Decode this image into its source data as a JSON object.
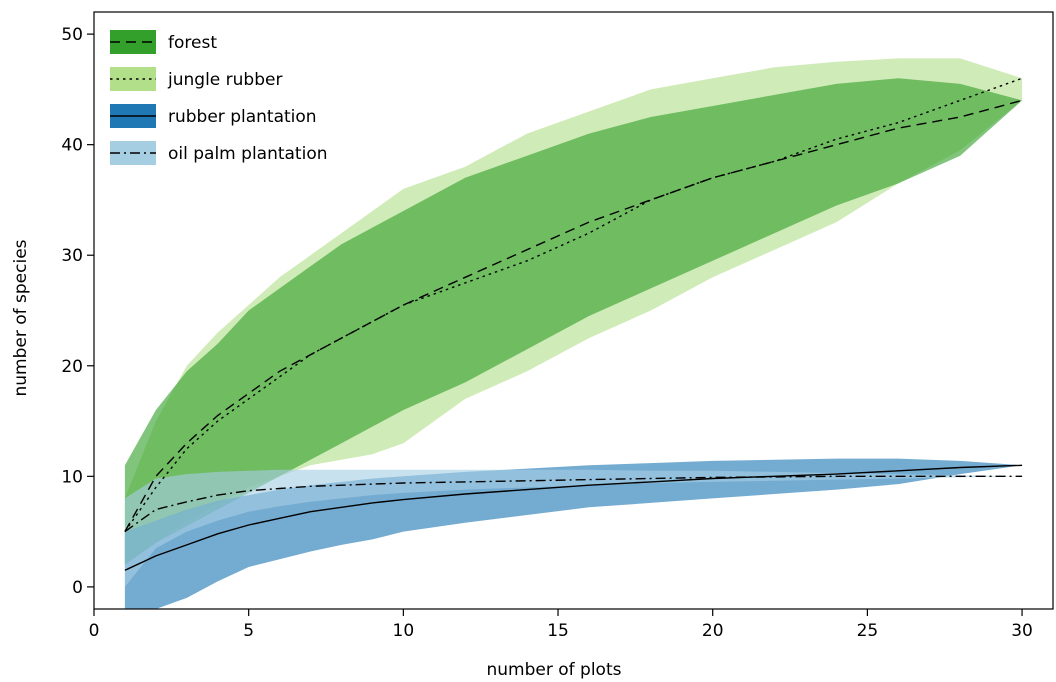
{
  "chart_data": {
    "type": "area",
    "xlabel": "number of plots",
    "ylabel": "number of species",
    "xlim": [
      0,
      31
    ],
    "ylim": [
      -2,
      52
    ],
    "xticks": [
      0,
      5,
      10,
      15,
      20,
      25,
      30
    ],
    "yticks": [
      0,
      10,
      20,
      30,
      40,
      50
    ],
    "grid": false,
    "legend_position": "top-left",
    "series": [
      {
        "name": "jungle rubber",
        "color": "#b2df8a",
        "line_style": "dotted",
        "x": [
          1,
          2,
          3,
          4,
          5,
          6,
          7,
          8,
          9,
          10,
          12,
          14,
          16,
          18,
          20,
          22,
          24,
          26,
          28,
          30
        ],
        "mean": [
          5,
          9,
          12.5,
          15,
          17,
          19,
          21,
          22.5,
          24,
          25.5,
          27.5,
          29.5,
          32,
          35,
          37,
          38.5,
          40.5,
          42,
          44,
          46
        ],
        "upper": [
          8,
          15,
          20,
          23,
          25.5,
          28,
          30,
          32,
          34,
          36,
          38,
          41,
          43,
          45,
          46,
          47,
          47.5,
          47.8,
          47.8,
          46
        ],
        "lower": [
          2,
          4,
          6,
          7.5,
          9,
          10,
          11,
          11.5,
          12,
          13,
          17,
          19.5,
          22.5,
          25,
          28,
          30.5,
          33,
          36.5,
          39.5,
          44
        ]
      },
      {
        "name": "forest",
        "color": "#33a02c",
        "line_style": "dashed",
        "x": [
          1,
          2,
          3,
          4,
          5,
          6,
          7,
          8,
          9,
          10,
          12,
          14,
          16,
          18,
          20,
          22,
          24,
          26,
          28,
          30
        ],
        "mean": [
          5,
          10,
          13,
          15.5,
          17.5,
          19.5,
          21,
          22.5,
          24,
          25.5,
          28,
          30.5,
          33,
          35,
          37,
          38.5,
          40,
          41.5,
          42.5,
          44
        ],
        "upper": [
          11,
          16,
          19.5,
          22,
          25,
          27,
          29,
          31,
          32.5,
          34,
          37,
          39,
          41,
          42.5,
          43.5,
          44.5,
          45.5,
          46,
          45.5,
          44
        ],
        "lower": [
          2,
          4,
          5.5,
          7,
          8.5,
          10,
          11.5,
          13,
          14.5,
          16,
          18.5,
          21.5,
          24.5,
          27,
          29.5,
          32,
          34.5,
          36.5,
          39,
          44
        ]
      },
      {
        "name": "rubber plantation",
        "color": "#1f78b4",
        "line_style": "solid",
        "x": [
          1,
          2,
          3,
          4,
          5,
          6,
          7,
          8,
          9,
          10,
          12,
          14,
          16,
          18,
          20,
          22,
          24,
          26,
          28,
          30
        ],
        "mean": [
          1.5,
          2.8,
          3.8,
          4.8,
          5.6,
          6.2,
          6.8,
          7.2,
          7.6,
          7.9,
          8.4,
          8.8,
          9.2,
          9.5,
          9.8,
          10.0,
          10.2,
          10.5,
          10.8,
          11
        ],
        "upper": [
          5,
          6,
          7,
          7.8,
          8.3,
          8.8,
          9.2,
          9.5,
          9.8,
          10,
          10.4,
          10.7,
          11,
          11.2,
          11.4,
          11.5,
          11.6,
          11.6,
          11.4,
          11
        ],
        "lower": [
          -2,
          -2,
          -1,
          0.5,
          1.8,
          2.5,
          3.2,
          3.8,
          4.3,
          5,
          5.8,
          6.5,
          7.2,
          7.6,
          8,
          8.4,
          8.8,
          9.3,
          10.2,
          11
        ]
      },
      {
        "name": "oil palm plantation",
        "color": "#a6cee3",
        "line_style": "dashdot",
        "x": [
          1,
          2,
          3,
          4,
          5,
          6,
          7,
          8,
          9,
          10,
          12,
          14,
          16,
          18,
          20,
          22,
          24,
          26,
          28,
          30
        ],
        "mean": [
          5,
          7,
          7.7,
          8.3,
          8.7,
          8.9,
          9.1,
          9.2,
          9.3,
          9.4,
          9.5,
          9.6,
          9.7,
          9.8,
          9.9,
          9.95,
          10,
          10,
          10,
          10
        ],
        "upper": [
          8,
          9.8,
          10.2,
          10.4,
          10.5,
          10.6,
          10.6,
          10.6,
          10.6,
          10.6,
          10.6,
          10.6,
          10.6,
          10.5,
          10.5,
          10.4,
          10.3,
          10.2,
          10.1,
          10
        ],
        "lower": [
          0,
          3.5,
          5,
          6,
          6.8,
          7.3,
          7.7,
          8,
          8.3,
          8.5,
          8.8,
          9,
          9.2,
          9.4,
          9.5,
          9.6,
          9.7,
          9.8,
          9.9,
          10
        ]
      }
    ],
    "legend_order": [
      "forest",
      "jungle rubber",
      "rubber plantation",
      "oil palm plantation"
    ]
  }
}
